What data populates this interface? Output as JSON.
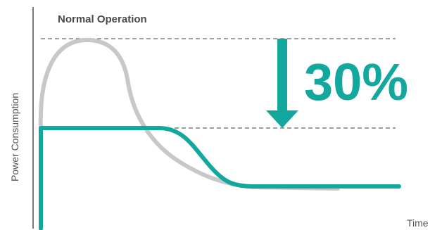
{
  "chart_data": {
    "type": "line",
    "title": "Normal Operation",
    "xlabel": "Time",
    "ylabel": "Power Consumption",
    "annotation": "30%",
    "grid": false,
    "colors": {
      "axis": "#4a4f55",
      "reference_lines": "#666666",
      "normal_series": "#c8c8ca",
      "reduced_series": "#13a89e",
      "arrow": "#13a89e",
      "annotation": "#13a89e"
    }
  }
}
